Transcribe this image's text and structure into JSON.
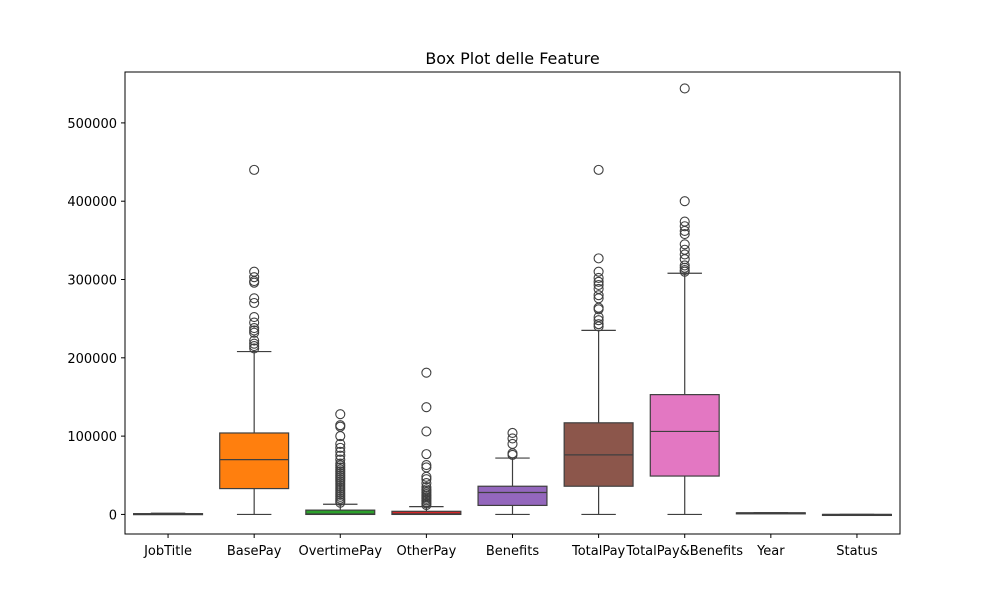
{
  "chart_data": {
    "type": "box",
    "title": "Box Plot delle Feature",
    "xlabel": "",
    "ylabel": "",
    "ylim": [
      -25000,
      565000
    ],
    "yticks": [
      0,
      100000,
      200000,
      300000,
      400000,
      500000
    ],
    "ytick_labels": [
      "0",
      "100000",
      "200000",
      "300000",
      "400000",
      "500000"
    ],
    "grid": false,
    "categories": [
      "JobTitle",
      "BasePay",
      "OvertimePay",
      "OtherPay",
      "Benefits",
      "TotalPay",
      "TotalPay&Benefits",
      "Year",
      "Status"
    ],
    "boxes": [
      {
        "name": "JobTitle",
        "color": "#1f77b4",
        "whisker_low": 0,
        "q1": 0,
        "median": 500,
        "q3": 1000,
        "whisker_high": 1500,
        "outliers": []
      },
      {
        "name": "BasePay",
        "color": "#ff7f0e",
        "whisker_low": 0,
        "q1": 33000,
        "median": 70000,
        "q3": 104000,
        "whisker_high": 208000,
        "outliers": [
          212000,
          215000,
          218000,
          222000,
          232000,
          235000,
          238000,
          245000,
          252000,
          270000,
          276000,
          296000,
          298000,
          303000,
          310000,
          440000
        ]
      },
      {
        "name": "OvertimePay",
        "color": "#2ca02c",
        "whisker_low": 0,
        "q1": 0,
        "median": 500,
        "q3": 5500,
        "whisker_high": 13000,
        "outliers": [
          15000,
          17500,
          20000,
          22500,
          25000,
          27500,
          30000,
          32500,
          35000,
          37500,
          40000,
          42500,
          45000,
          47500,
          50000,
          52500,
          55000,
          57500,
          60000,
          62500,
          65000,
          70000,
          75000,
          80000,
          85000,
          90000,
          100000,
          112000,
          114000,
          128000
        ]
      },
      {
        "name": "OtherPay",
        "color": "#d62728",
        "whisker_low": 0,
        "q1": 0,
        "median": 700,
        "q3": 4000,
        "whisker_high": 10000,
        "outliers": [
          12000,
          14000,
          16000,
          18000,
          20000,
          22000,
          24000,
          26000,
          28000,
          30000,
          32000,
          35000,
          40000,
          45000,
          48000,
          60000,
          63000,
          77000,
          106000,
          137000,
          181000
        ]
      },
      {
        "name": "Benefits",
        "color": "#9467bd",
        "whisker_low": 0,
        "q1": 11500,
        "median": 28000,
        "q3": 36000,
        "whisker_high": 72000,
        "outliers": [
          76000,
          78000,
          90000,
          97000,
          104000
        ]
      },
      {
        "name": "TotalPay",
        "color": "#8c564b",
        "whisker_low": 0,
        "q1": 36000,
        "median": 76000,
        "q3": 117000,
        "whisker_high": 235000,
        "outliers": [
          240000,
          243000,
          248000,
          252000,
          262000,
          264000,
          276000,
          280000,
          288000,
          293000,
          297000,
          302000,
          310000,
          327000,
          440000
        ]
      },
      {
        "name": "TotalPay&Benefits",
        "color": "#e377c2",
        "whisker_low": 0,
        "q1": 49000,
        "median": 106000,
        "q3": 153000,
        "whisker_high": 308000,
        "outliers": [
          310000,
          312000,
          315000,
          318000,
          326000,
          332000,
          338000,
          345000,
          358000,
          362000,
          368000,
          374000,
          400000,
          544000
        ]
      },
      {
        "name": "Year",
        "color": "#7f7f7f",
        "whisker_low": 2011,
        "q1": 2012,
        "median": 2013,
        "q3": 2014,
        "whisker_high": 2014,
        "outliers": []
      },
      {
        "name": "Status",
        "color": "#bcbd22",
        "whisker_low": 0,
        "q1": 0,
        "median": 0,
        "q3": 0,
        "whisker_high": 0,
        "outliers": []
      }
    ]
  }
}
